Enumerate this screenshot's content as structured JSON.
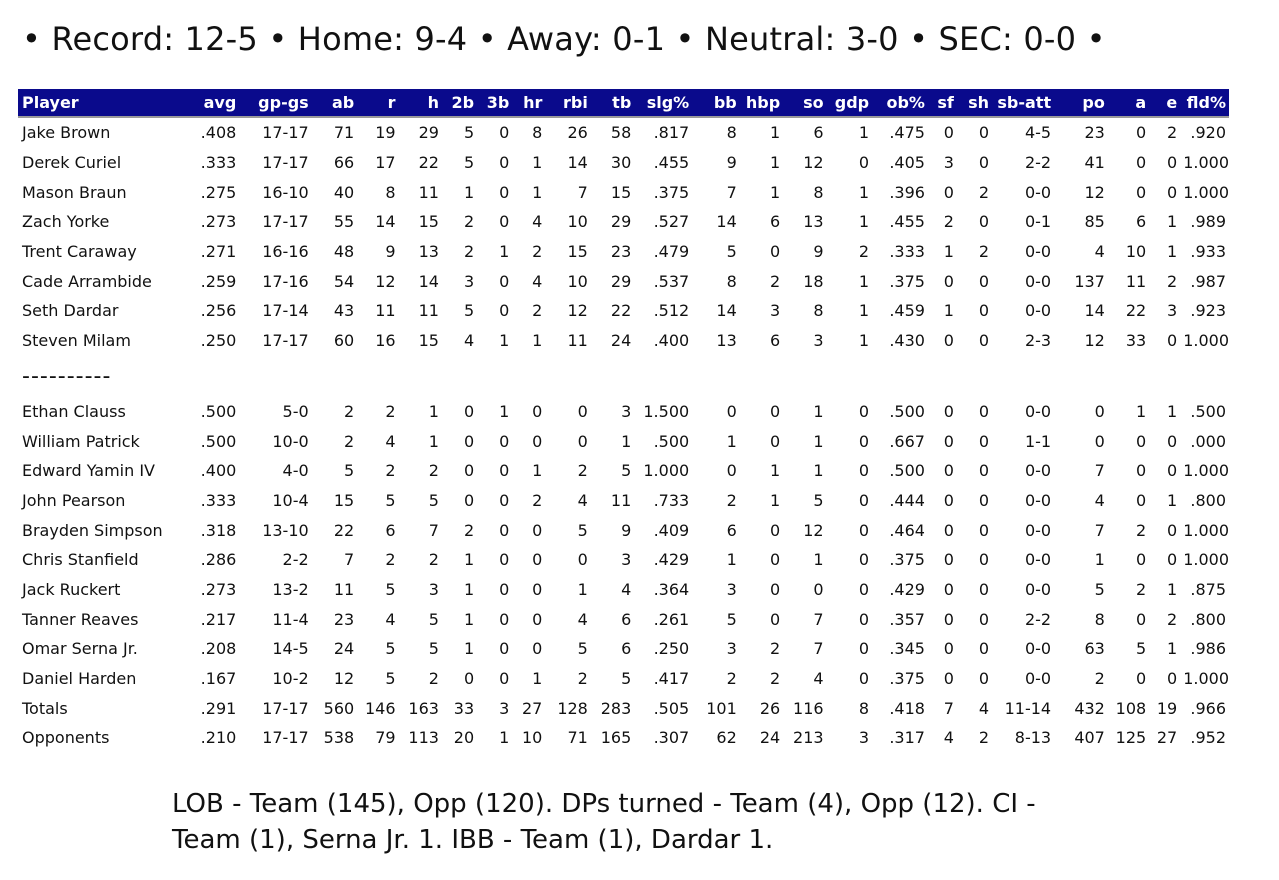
{
  "record_line": "• Record: 12-5 • Home: 9-4 • Away: 0-1 • Neutral: 3-0 • SEC: 0-0 •",
  "columns": [
    "Player",
    "avg",
    "gp-gs",
    "ab",
    "r",
    "h",
    "2b",
    "3b",
    "hr",
    "rbi",
    "tb",
    "slg%",
    "bb",
    "hbp",
    "so",
    "gdp",
    "ob%",
    "sf",
    "sh",
    "sb-att",
    "po",
    "a",
    "e",
    "fld%"
  ],
  "starters": [
    [
      "Jake Brown",
      ".408",
      "17-17",
      "71",
      "19",
      "29",
      "5",
      "0",
      "8",
      "26",
      "58",
      ".817",
      "8",
      "1",
      "6",
      "1",
      ".475",
      "0",
      "0",
      "4-5",
      "23",
      "0",
      "2",
      ".920"
    ],
    [
      "Derek Curiel",
      ".333",
      "17-17",
      "66",
      "17",
      "22",
      "5",
      "0",
      "1",
      "14",
      "30",
      ".455",
      "9",
      "1",
      "12",
      "0",
      ".405",
      "3",
      "0",
      "2-2",
      "41",
      "0",
      "0",
      "1.000"
    ],
    [
      "Mason Braun",
      ".275",
      "16-10",
      "40",
      "8",
      "11",
      "1",
      "0",
      "1",
      "7",
      "15",
      ".375",
      "7",
      "1",
      "8",
      "1",
      ".396",
      "0",
      "2",
      "0-0",
      "12",
      "0",
      "0",
      "1.000"
    ],
    [
      "Zach Yorke",
      ".273",
      "17-17",
      "55",
      "14",
      "15",
      "2",
      "0",
      "4",
      "10",
      "29",
      ".527",
      "14",
      "6",
      "13",
      "1",
      ".455",
      "2",
      "0",
      "0-1",
      "85",
      "6",
      "1",
      ".989"
    ],
    [
      "Trent Caraway",
      ".271",
      "16-16",
      "48",
      "9",
      "13",
      "2",
      "1",
      "2",
      "15",
      "23",
      ".479",
      "5",
      "0",
      "9",
      "2",
      ".333",
      "1",
      "2",
      "0-0",
      "4",
      "10",
      "1",
      ".933"
    ],
    [
      "Cade Arrambide",
      ".259",
      "17-16",
      "54",
      "12",
      "14",
      "3",
      "0",
      "4",
      "10",
      "29",
      ".537",
      "8",
      "2",
      "18",
      "1",
      ".375",
      "0",
      "0",
      "0-0",
      "137",
      "11",
      "2",
      ".987"
    ],
    [
      "Seth Dardar",
      ".256",
      "17-14",
      "43",
      "11",
      "11",
      "5",
      "0",
      "2",
      "12",
      "22",
      ".512",
      "14",
      "3",
      "8",
      "1",
      ".459",
      "1",
      "0",
      "0-0",
      "14",
      "22",
      "3",
      ".923"
    ],
    [
      "Steven Milam",
      ".250",
      "17-17",
      "60",
      "16",
      "15",
      "4",
      "1",
      "1",
      "11",
      "24",
      ".400",
      "13",
      "6",
      "3",
      "1",
      ".430",
      "0",
      "0",
      "2-3",
      "12",
      "33",
      "0",
      "1.000"
    ]
  ],
  "separator": "----------",
  "reserves": [
    [
      "Ethan Clauss",
      ".500",
      "5-0",
      "2",
      "2",
      "1",
      "0",
      "1",
      "0",
      "0",
      "3",
      "1.500",
      "0",
      "0",
      "1",
      "0",
      ".500",
      "0",
      "0",
      "0-0",
      "0",
      "1",
      "1",
      ".500"
    ],
    [
      "William Patrick",
      ".500",
      "10-0",
      "2",
      "4",
      "1",
      "0",
      "0",
      "0",
      "0",
      "1",
      ".500",
      "1",
      "0",
      "1",
      "0",
      ".667",
      "0",
      "0",
      "1-1",
      "0",
      "0",
      "0",
      ".000"
    ],
    [
      "Edward Yamin IV",
      ".400",
      "4-0",
      "5",
      "2",
      "2",
      "0",
      "0",
      "1",
      "2",
      "5",
      "1.000",
      "0",
      "1",
      "1",
      "0",
      ".500",
      "0",
      "0",
      "0-0",
      "7",
      "0",
      "0",
      "1.000"
    ],
    [
      "John Pearson",
      ".333",
      "10-4",
      "15",
      "5",
      "5",
      "0",
      "0",
      "2",
      "4",
      "11",
      ".733",
      "2",
      "1",
      "5",
      "0",
      ".444",
      "0",
      "0",
      "0-0",
      "4",
      "0",
      "1",
      ".800"
    ],
    [
      "Brayden Simpson",
      ".318",
      "13-10",
      "22",
      "6",
      "7",
      "2",
      "0",
      "0",
      "5",
      "9",
      ".409",
      "6",
      "0",
      "12",
      "0",
      ".464",
      "0",
      "0",
      "0-0",
      "7",
      "2",
      "0",
      "1.000"
    ],
    [
      "Chris Stanfield",
      ".286",
      "2-2",
      "7",
      "2",
      "2",
      "1",
      "0",
      "0",
      "0",
      "3",
      ".429",
      "1",
      "0",
      "1",
      "0",
      ".375",
      "0",
      "0",
      "0-0",
      "1",
      "0",
      "0",
      "1.000"
    ],
    [
      "Jack Ruckert",
      ".273",
      "13-2",
      "11",
      "5",
      "3",
      "1",
      "0",
      "0",
      "1",
      "4",
      ".364",
      "3",
      "0",
      "0",
      "0",
      ".429",
      "0",
      "0",
      "0-0",
      "5",
      "2",
      "1",
      ".875"
    ],
    [
      "Tanner Reaves",
      ".217",
      "11-4",
      "23",
      "4",
      "5",
      "1",
      "0",
      "0",
      "4",
      "6",
      ".261",
      "5",
      "0",
      "7",
      "0",
      ".357",
      "0",
      "0",
      "2-2",
      "8",
      "0",
      "2",
      ".800"
    ],
    [
      "Omar Serna Jr.",
      ".208",
      "14-5",
      "24",
      "5",
      "5",
      "1",
      "0",
      "0",
      "5",
      "6",
      ".250",
      "3",
      "2",
      "7",
      "0",
      ".345",
      "0",
      "0",
      "0-0",
      "63",
      "5",
      "1",
      ".986"
    ],
    [
      "Daniel Harden",
      ".167",
      "10-2",
      "12",
      "5",
      "2",
      "0",
      "0",
      "1",
      "2",
      "5",
      ".417",
      "2",
      "2",
      "4",
      "0",
      ".375",
      "0",
      "0",
      "0-0",
      "2",
      "0",
      "0",
      "1.000"
    ],
    [
      "Totals",
      ".291",
      "17-17",
      "560",
      "146",
      "163",
      "33",
      "3",
      "27",
      "128",
      "283",
      ".505",
      "101",
      "26",
      "116",
      "8",
      ".418",
      "7",
      "4",
      "11-14",
      "432",
      "108",
      "19",
      ".966"
    ],
    [
      "Opponents",
      ".210",
      "17-17",
      "538",
      "79",
      "113",
      "20",
      "1",
      "10",
      "71",
      "165",
      ".307",
      "62",
      "24",
      "213",
      "3",
      ".317",
      "4",
      "2",
      "8-13",
      "407",
      "125",
      "27",
      ".952"
    ]
  ],
  "footnote": "LOB - Team (145), Opp (120). DPs turned - Team (4), Opp (12). CI - Team (1), Serna Jr. 1. IBB - Team (1), Dardar 1."
}
